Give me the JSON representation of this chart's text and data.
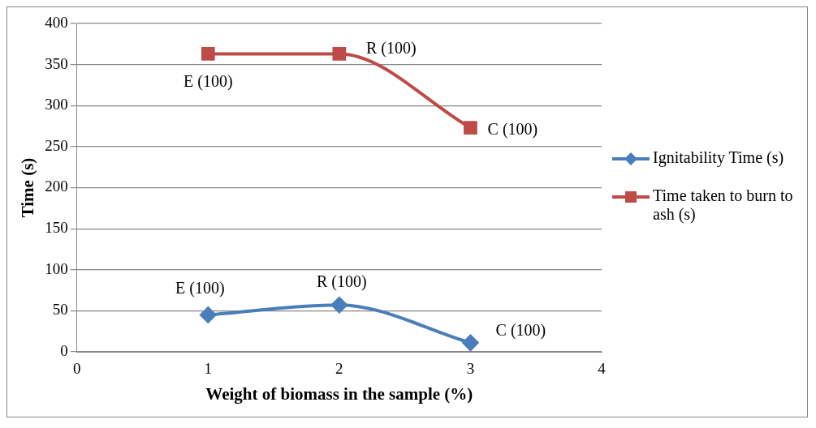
{
  "chart_data": {
    "type": "line",
    "xlabel": "Weight of biomass in the sample (%)",
    "ylabel": "Time (s)",
    "x": [
      1,
      2,
      3
    ],
    "series": [
      {
        "name": "Ignitability Time (s)",
        "color": "#4a7ebb",
        "values": [
          45,
          57,
          11
        ],
        "marker": "diamond"
      },
      {
        "name": "Time taken to burn to ash (s)",
        "color": "#be4b48",
        "values": [
          363,
          363,
          273
        ],
        "marker": "square"
      }
    ],
    "xlim": [
      0,
      4
    ],
    "xticks": [
      0,
      1,
      2,
      3,
      4
    ],
    "ylim": [
      0,
      400
    ],
    "yticks": [
      0,
      50,
      100,
      150,
      200,
      250,
      300,
      350,
      400
    ],
    "grid": "y",
    "legend": "right",
    "annotations": [
      {
        "text": "E (100)",
        "x": 1,
        "y": 45
      },
      {
        "text": "R (100)",
        "x": 2,
        "y": 57
      },
      {
        "text": "C (100)",
        "x": 3,
        "y": 11
      },
      {
        "text": "E (100)",
        "x": 1,
        "y": 363
      },
      {
        "text": "R (100)",
        "x": 2,
        "y": 363
      },
      {
        "text": "C (100)",
        "x": 3,
        "y": 273
      }
    ]
  }
}
